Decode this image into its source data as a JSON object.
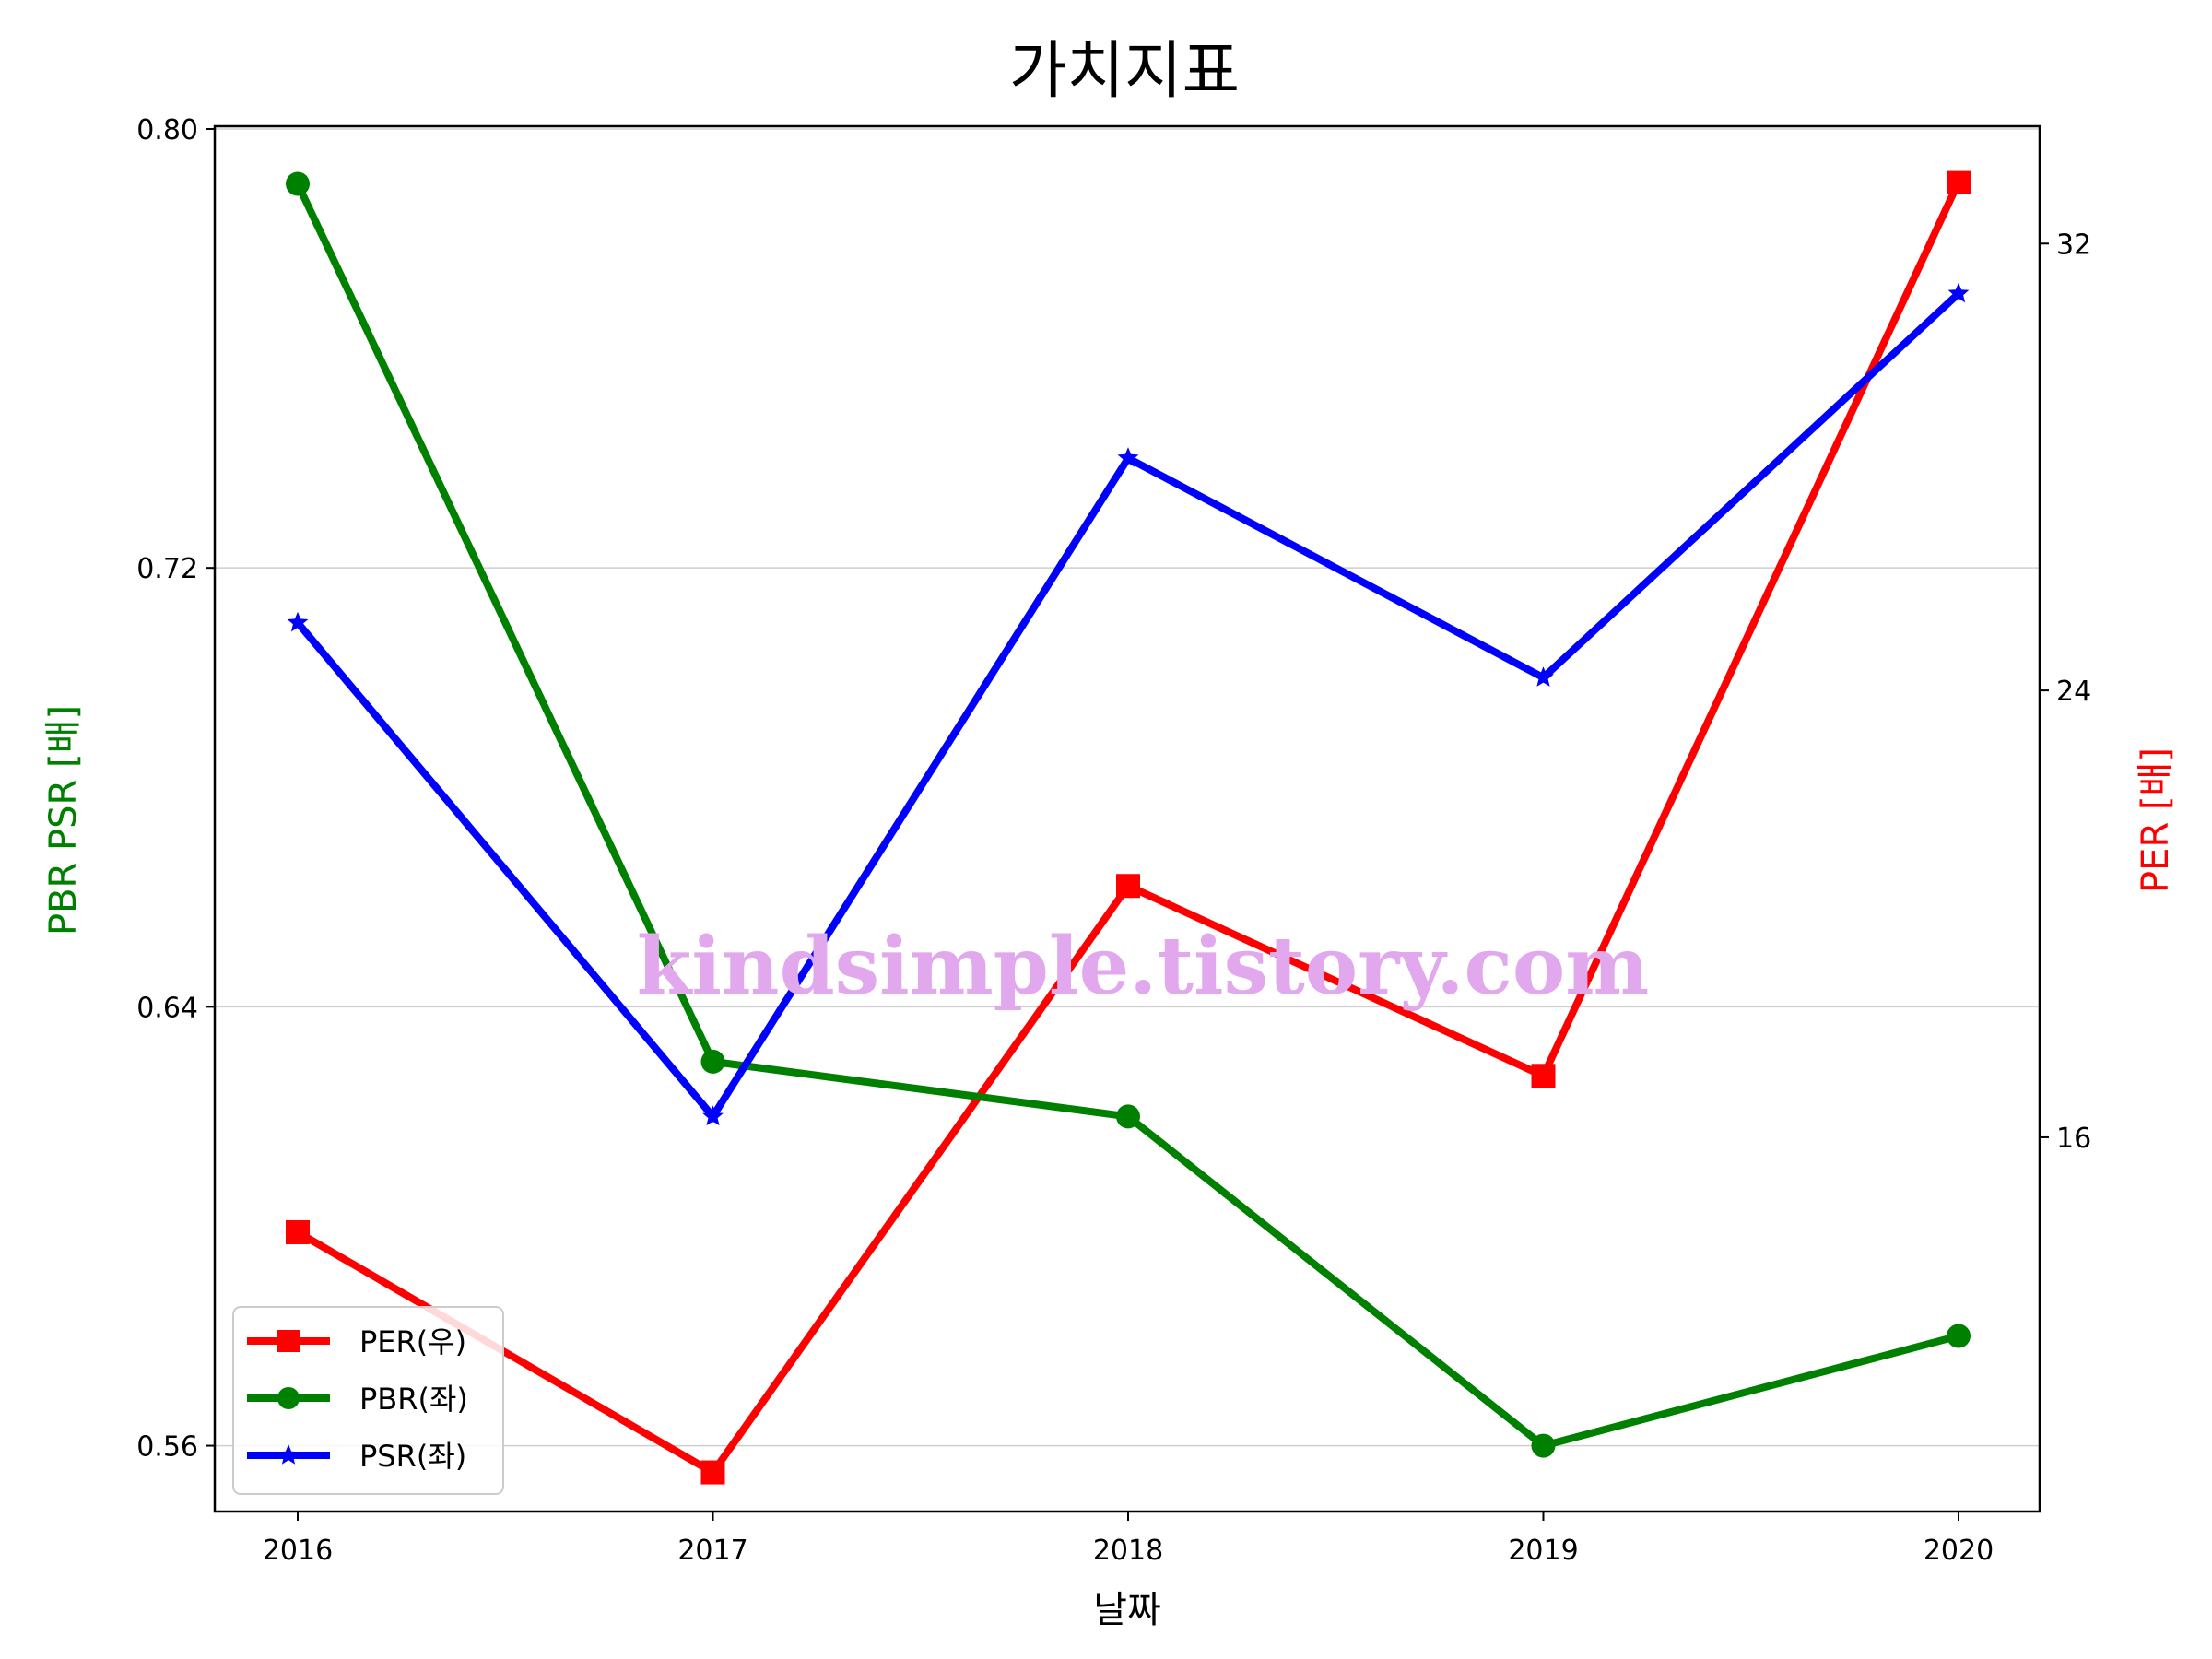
{
  "title": "가치지표",
  "watermark": "kindsimple.tistory.com",
  "chart_data": {
    "type": "line",
    "title": "가치지표",
    "xlabel": "날짜",
    "ylabel_left": "PBR PSR [배]",
    "ylabel_right": "PER [배]",
    "ylabel_left_color": "#008000",
    "ylabel_right_color": "#ff0000",
    "categories": [
      "2016",
      "2017",
      "2018",
      "2019",
      "2020"
    ],
    "yleft_ticks": [
      "0.56",
      "0.64",
      "0.72",
      "0.80"
    ],
    "yleft_range": [
      0.548,
      0.8005
    ],
    "yright_ticks": [
      "16",
      "24",
      "32"
    ],
    "yright_range": [
      9.3,
      34.1
    ],
    "grid": "horizontal",
    "legend_position": "lower-left",
    "series": [
      {
        "name": "PER(우)",
        "axis": "right",
        "color": "#ff0000",
        "marker": "square",
        "values": [
          14.3,
          10.0,
          20.5,
          17.1,
          33.1
        ]
      },
      {
        "name": "PBR(좌)",
        "axis": "left",
        "color": "#008000",
        "marker": "circle",
        "values": [
          0.79,
          0.63,
          0.62,
          0.56,
          0.58
        ]
      },
      {
        "name": "PSR(좌)",
        "axis": "left",
        "color": "#0000ff",
        "marker": "star",
        "values": [
          0.71,
          0.62,
          0.74,
          0.7,
          0.77
        ]
      }
    ]
  }
}
